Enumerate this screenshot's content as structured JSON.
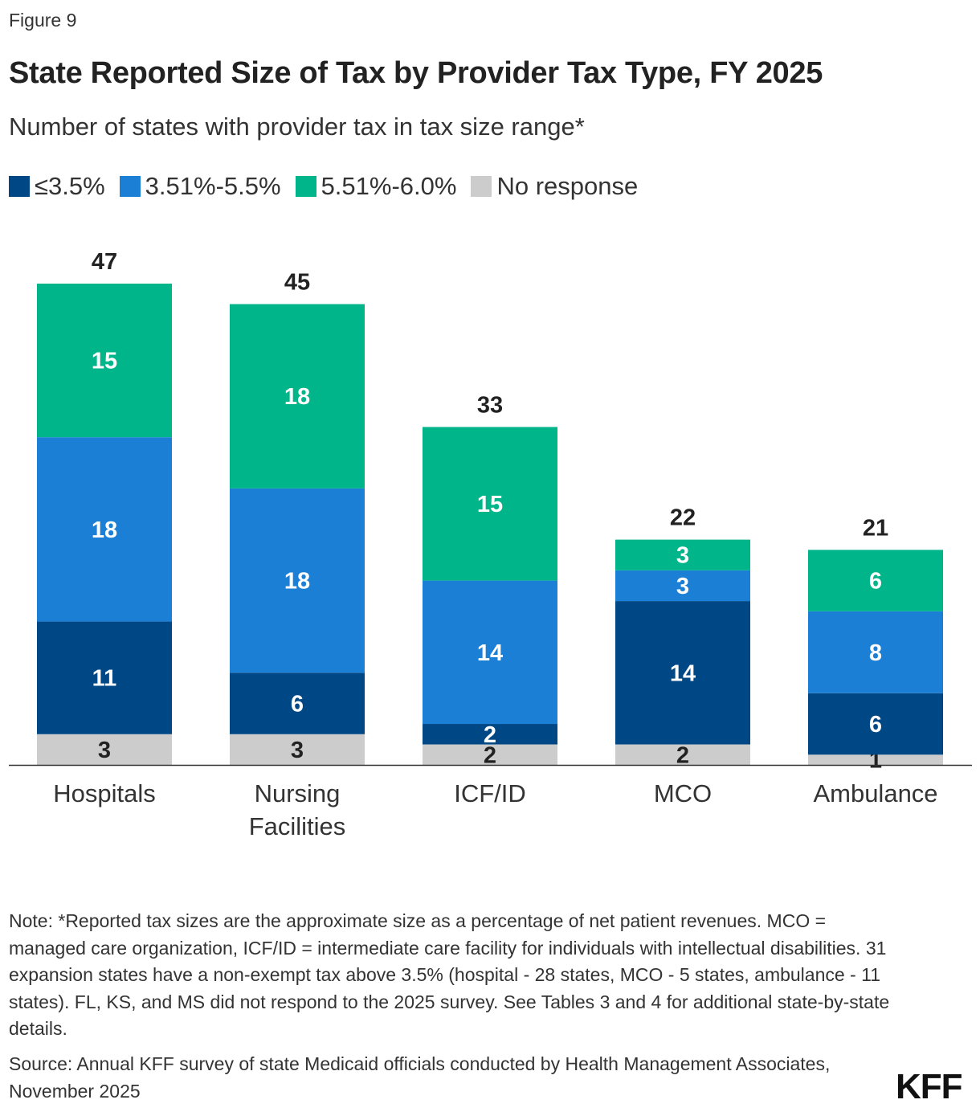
{
  "figure_label": "Figure 9",
  "title": "State Reported Size of Tax by Provider Tax Type, FY 2025",
  "subtitle": "Number of states with provider tax in tax size range*",
  "note": "Note: *Reported tax sizes are the approximate size as a percentage of net patient revenues. MCO = managed care organization, ICF/ID = intermediate care facility for individuals with intellectual disabilities. 31 expansion states have a non-exempt tax above 3.5% (hospital - 28 states, MCO - 5 states, ambulance - 11 states). FL, KS, and MS did not respond to the 2025 survey. See Tables 3 and 4 for additional state-by-state details.",
  "source": "Source: Annual KFF survey of state Medicaid officials conducted by Health Management Associates, November 2025",
  "logo": "KFF",
  "chart_data": {
    "type": "bar",
    "stacked": true,
    "title": "State Reported Size of Tax by Provider Tax Type, FY 2025",
    "subtitle": "Number of states with provider tax in tax size range*",
    "categories": [
      [
        "Hospitals"
      ],
      [
        "Nursing",
        "Facilities"
      ],
      [
        "ICF/ID"
      ],
      [
        "MCO"
      ],
      [
        "Ambulance"
      ]
    ],
    "totals": [
      47,
      45,
      33,
      22,
      21
    ],
    "series": [
      {
        "name": "No response",
        "color": "#cccccc",
        "label_color": "#222222",
        "values": [
          3,
          3,
          2,
          2,
          1
        ]
      },
      {
        "name": "≤3.5%",
        "color": "#004785",
        "label_color": "#ffffff",
        "values": [
          11,
          6,
          2,
          14,
          6
        ]
      },
      {
        "name": "3.51%-5.5%",
        "color": "#1b7fd6",
        "label_color": "#ffffff",
        "values": [
          18,
          18,
          14,
          3,
          8
        ]
      },
      {
        "name": "5.51%-6.0%",
        "color": "#00b589",
        "label_color": "#ffffff",
        "values": [
          15,
          18,
          15,
          3,
          6
        ]
      }
    ],
    "legend_order": [
      "≤3.5%",
      "3.51%-5.5%",
      "5.51%-6.0%",
      "No response"
    ],
    "legend_position": "top-left",
    "ylim": [
      0,
      47
    ],
    "y_axis_visible": false,
    "grid": false,
    "data_labels": true
  }
}
